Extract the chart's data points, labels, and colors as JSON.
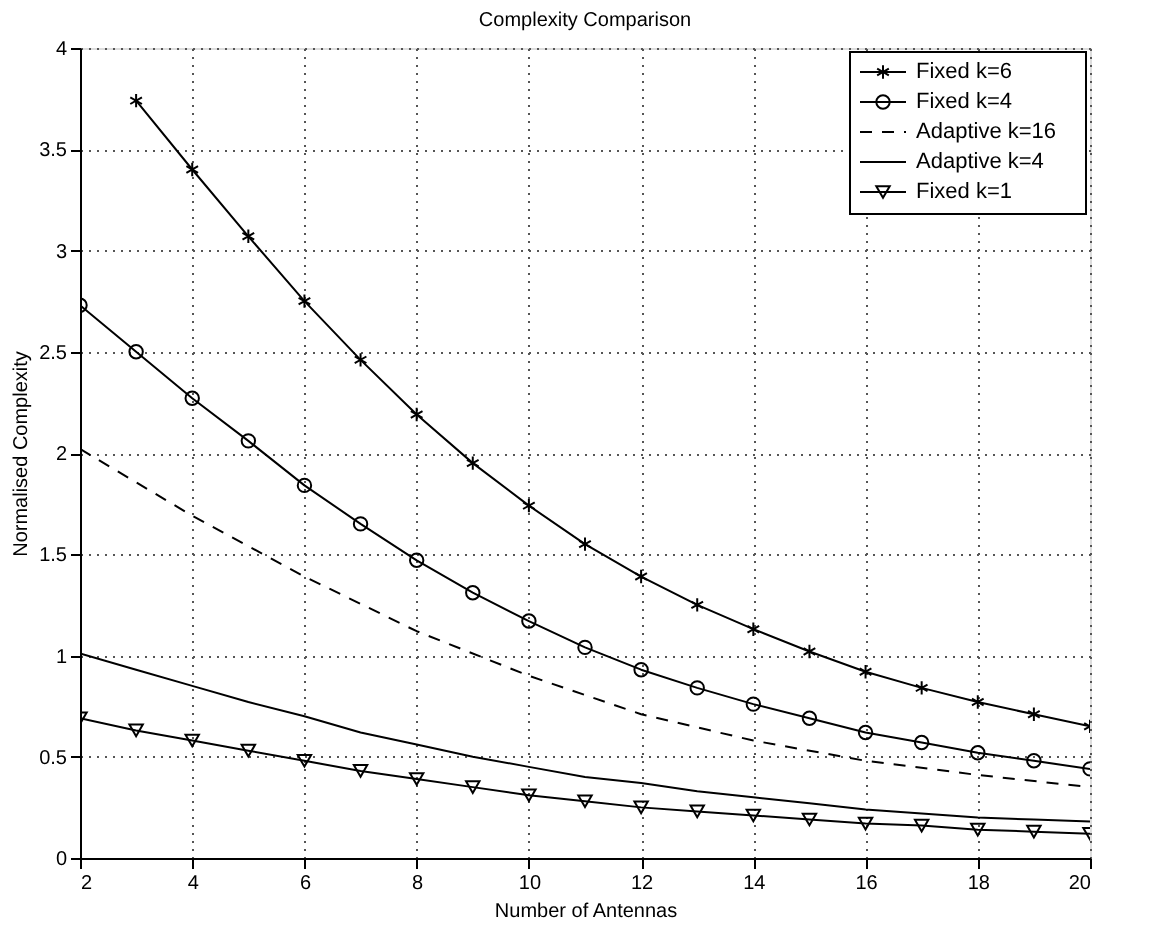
{
  "chart_data": {
    "type": "line",
    "title": "Complexity Comparison",
    "xlabel": "Number of Antennas",
    "ylabel": "Normalised Complexity",
    "xlim": [
      2,
      20
    ],
    "xticks": [
      2,
      4,
      6,
      8,
      10,
      12,
      14,
      16,
      18,
      20
    ],
    "ylim": [
      0,
      4
    ],
    "yticks": [
      0,
      0.5,
      1,
      1.5,
      2,
      2.5,
      3,
      3.5,
      4
    ],
    "grid": true,
    "legend": "top right",
    "series": [
      {
        "name": "Fixed k=6",
        "color": "#000000",
        "marker": "cross",
        "line_style": "solid",
        "x": [
          3,
          4,
          5,
          6,
          7,
          8,
          9,
          10,
          11,
          12,
          13,
          14,
          15,
          16,
          17,
          18,
          19,
          20
        ],
        "values": [
          3.74,
          3.4,
          3.07,
          2.75,
          2.46,
          2.19,
          1.95,
          1.74,
          1.55,
          1.39,
          1.25,
          1.13,
          1.02,
          0.92,
          0.84,
          0.77,
          0.71,
          0.65
        ]
      },
      {
        "name": "Fixed k=4",
        "color": "#000000",
        "marker": "circle",
        "line_style": "solid",
        "x": [
          2,
          3,
          4,
          5,
          6,
          7,
          8,
          9,
          10,
          11,
          12,
          13,
          14,
          15,
          16,
          17,
          18,
          19,
          20
        ],
        "values": [
          2.73,
          2.5,
          2.27,
          2.06,
          1.84,
          1.65,
          1.47,
          1.31,
          1.17,
          1.04,
          0.93,
          0.84,
          0.76,
          0.69,
          0.62,
          0.57,
          0.52,
          0.48,
          0.44
        ]
      },
      {
        "name": "Adaptive k=16",
        "color": "#000000",
        "marker": "none",
        "line_style": "dashed",
        "x": [
          2,
          4,
          6,
          8,
          10,
          12,
          14,
          16,
          18,
          20
        ],
        "values": [
          2.02,
          1.69,
          1.39,
          1.12,
          0.9,
          0.71,
          0.58,
          0.48,
          0.41,
          0.35
        ]
      },
      {
        "name": "Adaptive k=4",
        "color": "#000000",
        "marker": "none",
        "line_style": "solid",
        "x": [
          2,
          3,
          4,
          5,
          6,
          7,
          8,
          9,
          10,
          11,
          12,
          13,
          14,
          15,
          16,
          17,
          18,
          19,
          20
        ],
        "values": [
          1.01,
          0.93,
          0.85,
          0.77,
          0.7,
          0.62,
          0.56,
          0.5,
          0.45,
          0.4,
          0.37,
          0.33,
          0.3,
          0.27,
          0.24,
          0.22,
          0.2,
          0.19,
          0.18
        ]
      },
      {
        "name": "Fixed k=1",
        "color": "#000000",
        "marker": "triangle",
        "line_style": "solid",
        "x": [
          2,
          3,
          4,
          5,
          6,
          7,
          8,
          9,
          10,
          11,
          12,
          13,
          14,
          15,
          16,
          17,
          18,
          19,
          20
        ],
        "values": [
          0.69,
          0.63,
          0.58,
          0.53,
          0.48,
          0.43,
          0.39,
          0.35,
          0.31,
          0.28,
          0.25,
          0.23,
          0.21,
          0.19,
          0.17,
          0.16,
          0.14,
          0.13,
          0.12
        ]
      }
    ]
  }
}
